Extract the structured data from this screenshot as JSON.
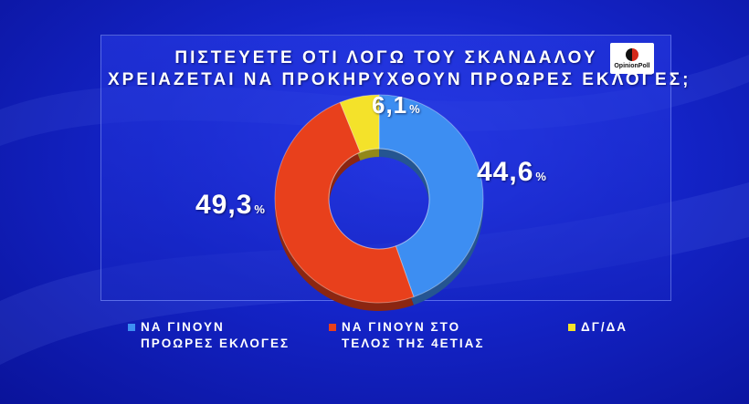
{
  "title": {
    "line1": "ΠΙΣΤΕΥΕΤΕ ΟΤΙ ΛΟΓΩ ΤΟΥ ΣΚΑΝΔΑΛΟΥ",
    "line2": "ΧΡΕΙΑΖΕΤΑΙ ΝΑ ΠΡΟΚΗΡΥΧΘΟΥΝ ΠΡΟΩΡΕΣ ΕΚΛΟΓΕΣ;"
  },
  "logo": {
    "text": "OpinionPoll",
    "icon": "opinionpoll-logo"
  },
  "colors": {
    "background": "#1424c8",
    "early_elections": "#3d8ef2",
    "end_of_term": "#e8401c",
    "dont_know": "#f4e22a"
  },
  "chart_data": {
    "type": "pie",
    "donut": true,
    "slices": [
      {
        "label_lines": [
          "ΝΑ ΓΙΝΟΥΝ",
          "ΠΡΟΩΡΕΣ ΕΚΛΟΓΕΣ"
        ],
        "value": 44.6,
        "display": "44,6",
        "unit": "%",
        "color": "#3d8ef2"
      },
      {
        "label_lines": [
          "ΝΑ ΓΙΝΟΥΝ ΣΤΟ",
          "ΤΕΛΟΣ ΤΗΣ 4ΕΤΙΑΣ"
        ],
        "value": 49.3,
        "display": "49,3",
        "unit": "%",
        "color": "#e8401c"
      },
      {
        "label_lines": [
          "ΔΓ/ΔΑ"
        ],
        "value": 6.1,
        "display": "6,1",
        "unit": "%",
        "color": "#f4e22a"
      }
    ],
    "legend_position": "bottom"
  }
}
